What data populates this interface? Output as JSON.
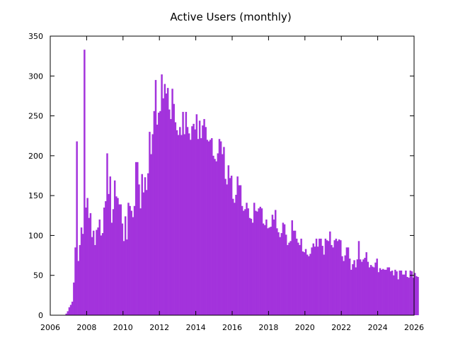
{
  "chart_data": {
    "type": "bar",
    "title": "Active Users (monthly)",
    "xlabel": "",
    "ylabel": "",
    "xlim": [
      2006,
      2026
    ],
    "ylim": [
      0,
      350
    ],
    "x_ticks": [
      "2006",
      "2008",
      "2010",
      "2012",
      "2014",
      "2016",
      "2018",
      "2020",
      "2022",
      "2024",
      "2026"
    ],
    "y_ticks": [
      "0",
      "50",
      "100",
      "150",
      "200",
      "250",
      "300",
      "350"
    ],
    "series_start": "2006-11",
    "bar_color": "#a333dc",
    "grid": false,
    "legend": "none",
    "values": [
      2,
      5,
      10,
      13,
      17,
      41,
      85,
      218,
      68,
      88,
      110,
      102,
      333,
      135,
      147,
      122,
      128,
      98,
      106,
      88,
      107,
      110,
      120,
      100,
      103,
      135,
      143,
      203,
      152,
      174,
      116,
      133,
      169,
      149,
      147,
      139,
      139,
      115,
      93,
      124,
      95,
      141,
      137,
      131,
      123,
      137,
      192,
      192,
      164,
      134,
      177,
      154,
      173,
      157,
      178,
      230,
      202,
      227,
      256,
      295,
      239,
      254,
      256,
      302,
      272,
      290,
      278,
      285,
      258,
      246,
      284,
      265,
      242,
      232,
      226,
      236,
      226,
      255,
      227,
      255,
      236,
      228,
      220,
      237,
      240,
      233,
      252,
      221,
      244,
      222,
      238,
      246,
      236,
      220,
      218,
      220,
      222,
      200,
      196,
      193,
      203,
      221,
      218,
      202,
      211,
      171,
      164,
      188,
      172,
      175,
      146,
      141,
      151,
      174,
      163,
      163,
      137,
      131,
      133,
      141,
      134,
      122,
      121,
      116,
      141,
      131,
      130,
      134,
      136,
      134,
      115,
      113,
      120,
      109,
      110,
      111,
      126,
      120,
      132,
      109,
      104,
      98,
      103,
      116,
      114,
      101,
      88,
      91,
      93,
      119,
      106,
      106,
      96,
      91,
      88,
      96,
      80,
      79,
      83,
      76,
      74,
      77,
      85,
      90,
      86,
      96,
      86,
      96,
      96,
      87,
      76,
      96,
      94,
      93,
      105,
      88,
      85,
      94,
      96,
      93,
      95,
      94,
      74,
      68,
      75,
      85,
      85,
      71,
      57,
      64,
      69,
      60,
      70,
      93,
      70,
      67,
      70,
      72,
      79,
      67,
      60,
      63,
      61,
      60,
      66,
      71,
      54,
      59,
      57,
      58,
      57,
      57,
      60,
      60,
      55,
      56,
      50,
      57,
      55,
      45,
      56,
      56,
      51,
      51,
      56,
      48,
      47,
      56,
      55,
      47,
      53,
      49,
      48
    ]
  }
}
